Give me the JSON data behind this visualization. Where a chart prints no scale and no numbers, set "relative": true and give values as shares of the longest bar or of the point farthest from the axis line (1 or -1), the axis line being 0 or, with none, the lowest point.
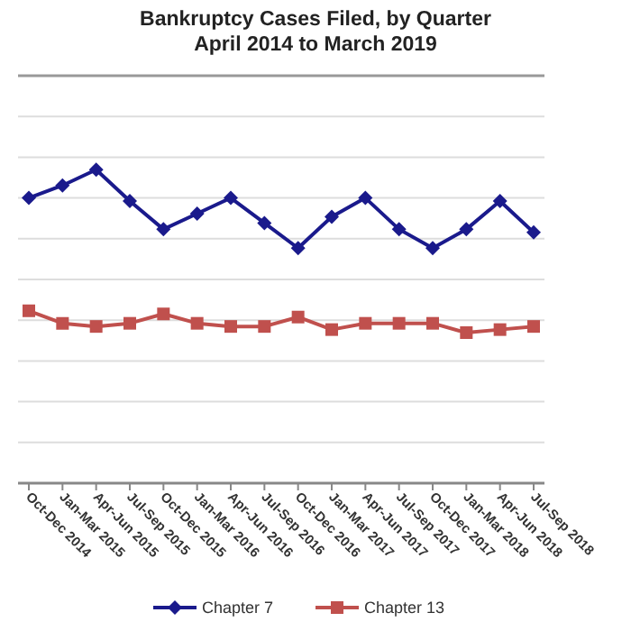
{
  "chart_data": {
    "type": "line",
    "title": "Bankruptcy Cases Filed, by Quarter",
    "subtitle": "April 2014 to March 2019",
    "relative": true,
    "grid": "y",
    "legend": "bottom",
    "categories": [
      "Oct-Dec 2014",
      "Jan-Mar 2015",
      "Apr-Jun 2015",
      "Jul-Sep 2015",
      "Oct-Dec 2015",
      "Jan-Mar 2016",
      "Apr-Jun 2016",
      "Jul-Sep 2016",
      "Oct-Dec 2016",
      "Jan-Mar 2017",
      "Apr-Jun 2017",
      "Jul-Sep 2017",
      "Oct-Dec 2017",
      "Jan-Mar 2018",
      "Apr-Jun 2018",
      "Jul-Sep 2018"
    ],
    "series": [
      {
        "name": "Chapter 7",
        "color": "#1a1a8c",
        "marker": "diamond",
        "values": [
          0.91,
          0.95,
          1,
          0.9,
          0.81,
          0.86,
          0.91,
          0.83,
          0.75,
          0.85,
          0.91,
          0.81,
          0.75,
          0.81,
          0.9,
          0.8
        ]
      },
      {
        "name": "Chapter 13",
        "color": "#c0504d",
        "marker": "square",
        "values": [
          0.55,
          0.51,
          0.5,
          0.51,
          0.54,
          0.51,
          0.5,
          0.5,
          0.53,
          0.49,
          0.51,
          0.51,
          0.51,
          0.48,
          0.49,
          0.5
        ]
      }
    ]
  }
}
